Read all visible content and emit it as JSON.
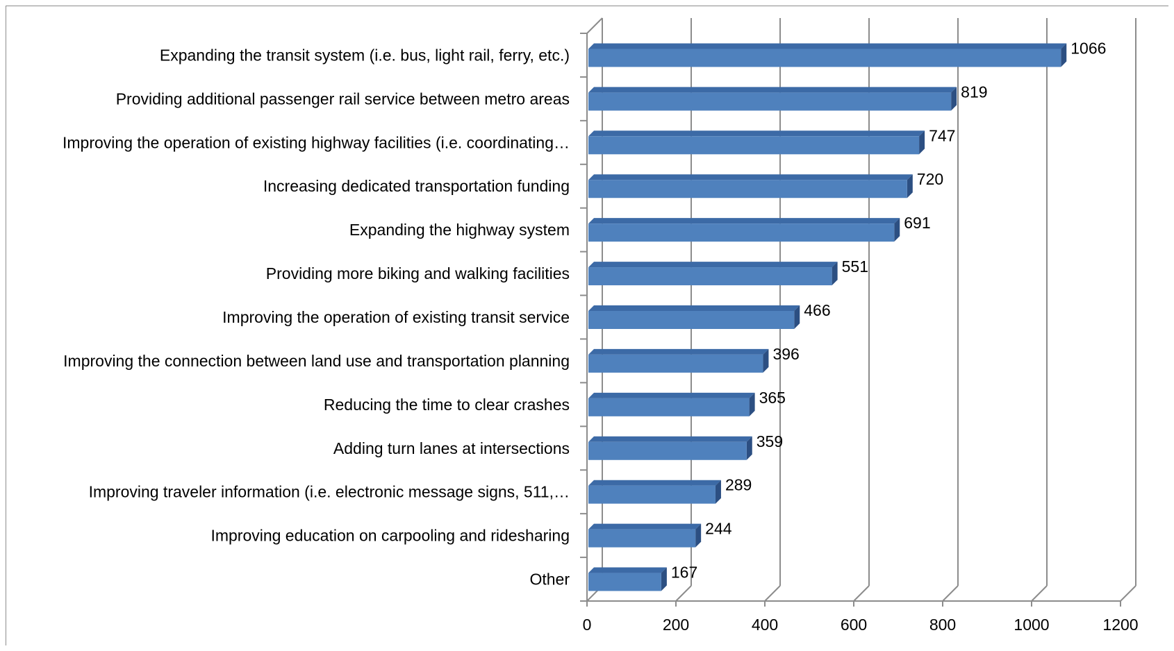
{
  "chart_data": {
    "type": "bar",
    "orientation": "horizontal",
    "style": "3d",
    "categories": [
      "Expanding the transit system (i.e. bus, light rail, ferry, etc.)",
      "Providing additional passenger rail service between metro areas",
      "Improving the operation of existing highway facilities (i.e. coordinating…",
      "Increasing dedicated transportation funding",
      "Expanding the highway system",
      "Providing more biking and walking facilities",
      "Improving the operation of existing transit service",
      "Improving the connection between land use and transportation planning",
      "Reducing the time to clear crashes",
      "Adding turn lanes at intersections",
      "Improving traveler information (i.e. electronic message signs, 511,…",
      "Improving education on carpooling and ridesharing",
      "Other"
    ],
    "values": [
      1066,
      819,
      747,
      720,
      691,
      551,
      466,
      396,
      365,
      359,
      289,
      244,
      167
    ],
    "data_labels": [
      "1066",
      "819",
      "747",
      "720",
      "691",
      "551",
      "466",
      "396",
      "365",
      "359",
      "289",
      "244",
      "167"
    ],
    "xlim": [
      0,
      1200
    ],
    "xticks": [
      0,
      200,
      400,
      600,
      800,
      1000,
      1200
    ],
    "xtick_labels": [
      "0",
      "200",
      "400",
      "600",
      "800",
      "1000",
      "1200"
    ],
    "title": "",
    "xlabel": "",
    "ylabel": "",
    "grid": "vertical",
    "legend": "none",
    "colors": {
      "bar_front": "#4f81bd",
      "bar_top": "#3c6aa6",
      "bar_side": "#2c4f82",
      "grid": "#8c8c8c",
      "text": "#000000"
    }
  }
}
